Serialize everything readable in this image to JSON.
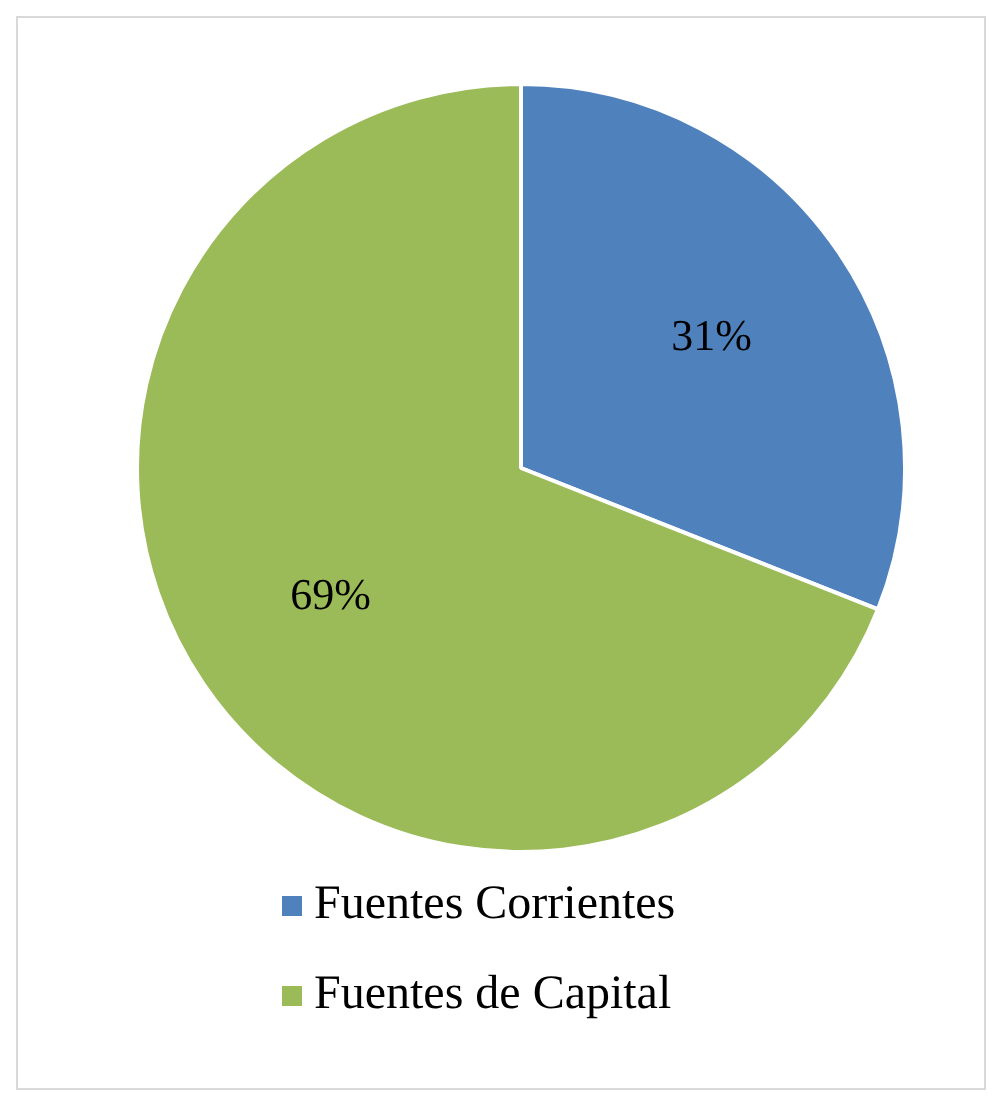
{
  "chart_data": {
    "type": "pie",
    "categories": [
      "Fuentes Corrientes",
      "Fuentes de Capital"
    ],
    "values": [
      31,
      69
    ],
    "colors": [
      "#4f81bd",
      "#9bbb59"
    ],
    "value_labels": [
      "31%",
      "69%"
    ],
    "legend": "bottom"
  }
}
